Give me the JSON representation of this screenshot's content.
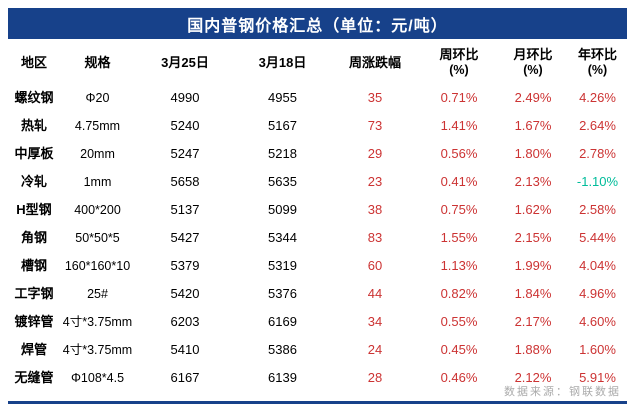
{
  "title": "国内普钢价格汇总（单位：元/吨）",
  "source_note": "数据来源：钢联数据",
  "colors": {
    "header_bg": "#17418A",
    "header_text": "#FFFFFF",
    "body_text": "#000000",
    "positive_change": "#CC3333",
    "negative_change": "#00BC9A",
    "source_text": "#ABABAB",
    "background": "#FFFFFF"
  },
  "columns": [
    {
      "label": "地区",
      "sub": ""
    },
    {
      "label": "规格",
      "sub": ""
    },
    {
      "label": "3月25日",
      "sub": ""
    },
    {
      "label": "3月18日",
      "sub": ""
    },
    {
      "label": "周涨跌幅",
      "sub": ""
    },
    {
      "label": "周环比",
      "sub": "(%)"
    },
    {
      "label": "月环比",
      "sub": "(%)"
    },
    {
      "label": "年环比",
      "sub": "(%)"
    }
  ],
  "chart_data": {
    "type": "table",
    "title": "国内普钢价格汇总（单位：元/吨）",
    "columns": [
      "地区",
      "规格",
      "3月25日",
      "3月18日",
      "周涨跌幅",
      "周环比(%)",
      "月环比(%)",
      "年环比(%)"
    ],
    "rows": [
      [
        "螺纹钢",
        "Φ20",
        "4990",
        "4955",
        "35",
        "0.71%",
        "2.49%",
        "4.26%"
      ],
      [
        "热轧",
        "4.75mm",
        "5240",
        "5167",
        "73",
        "1.41%",
        "1.67%",
        "2.64%"
      ],
      [
        "中厚板",
        "20mm",
        "5247",
        "5218",
        "29",
        "0.56%",
        "1.80%",
        "2.78%"
      ],
      [
        "冷轧",
        "1mm",
        "5658",
        "5635",
        "23",
        "0.41%",
        "2.13%",
        "-1.10%"
      ],
      [
        "H型钢",
        "400*200",
        "5137",
        "5099",
        "38",
        "0.75%",
        "1.62%",
        "2.58%"
      ],
      [
        "角钢",
        "50*50*5",
        "5427",
        "5344",
        "83",
        "1.55%",
        "2.15%",
        "5.44%"
      ],
      [
        "槽钢",
        "160*160*10",
        "5379",
        "5319",
        "60",
        "1.13%",
        "1.99%",
        "4.04%"
      ],
      [
        "工字钢",
        "25#",
        "5420",
        "5376",
        "44",
        "0.82%",
        "1.84%",
        "4.96%"
      ],
      [
        "镀锌管",
        "4寸*3.75mm",
        "6203",
        "6169",
        "34",
        "0.55%",
        "2.17%",
        "4.60%"
      ],
      [
        "焊管",
        "4寸*3.75mm",
        "5410",
        "5386",
        "24",
        "0.45%",
        "1.88%",
        "1.60%"
      ],
      [
        "无缝管",
        "Φ108*4.5",
        "6167",
        "6139",
        "28",
        "0.46%",
        "2.12%",
        "5.91%"
      ]
    ],
    "source": "数据来源：钢联数据"
  }
}
